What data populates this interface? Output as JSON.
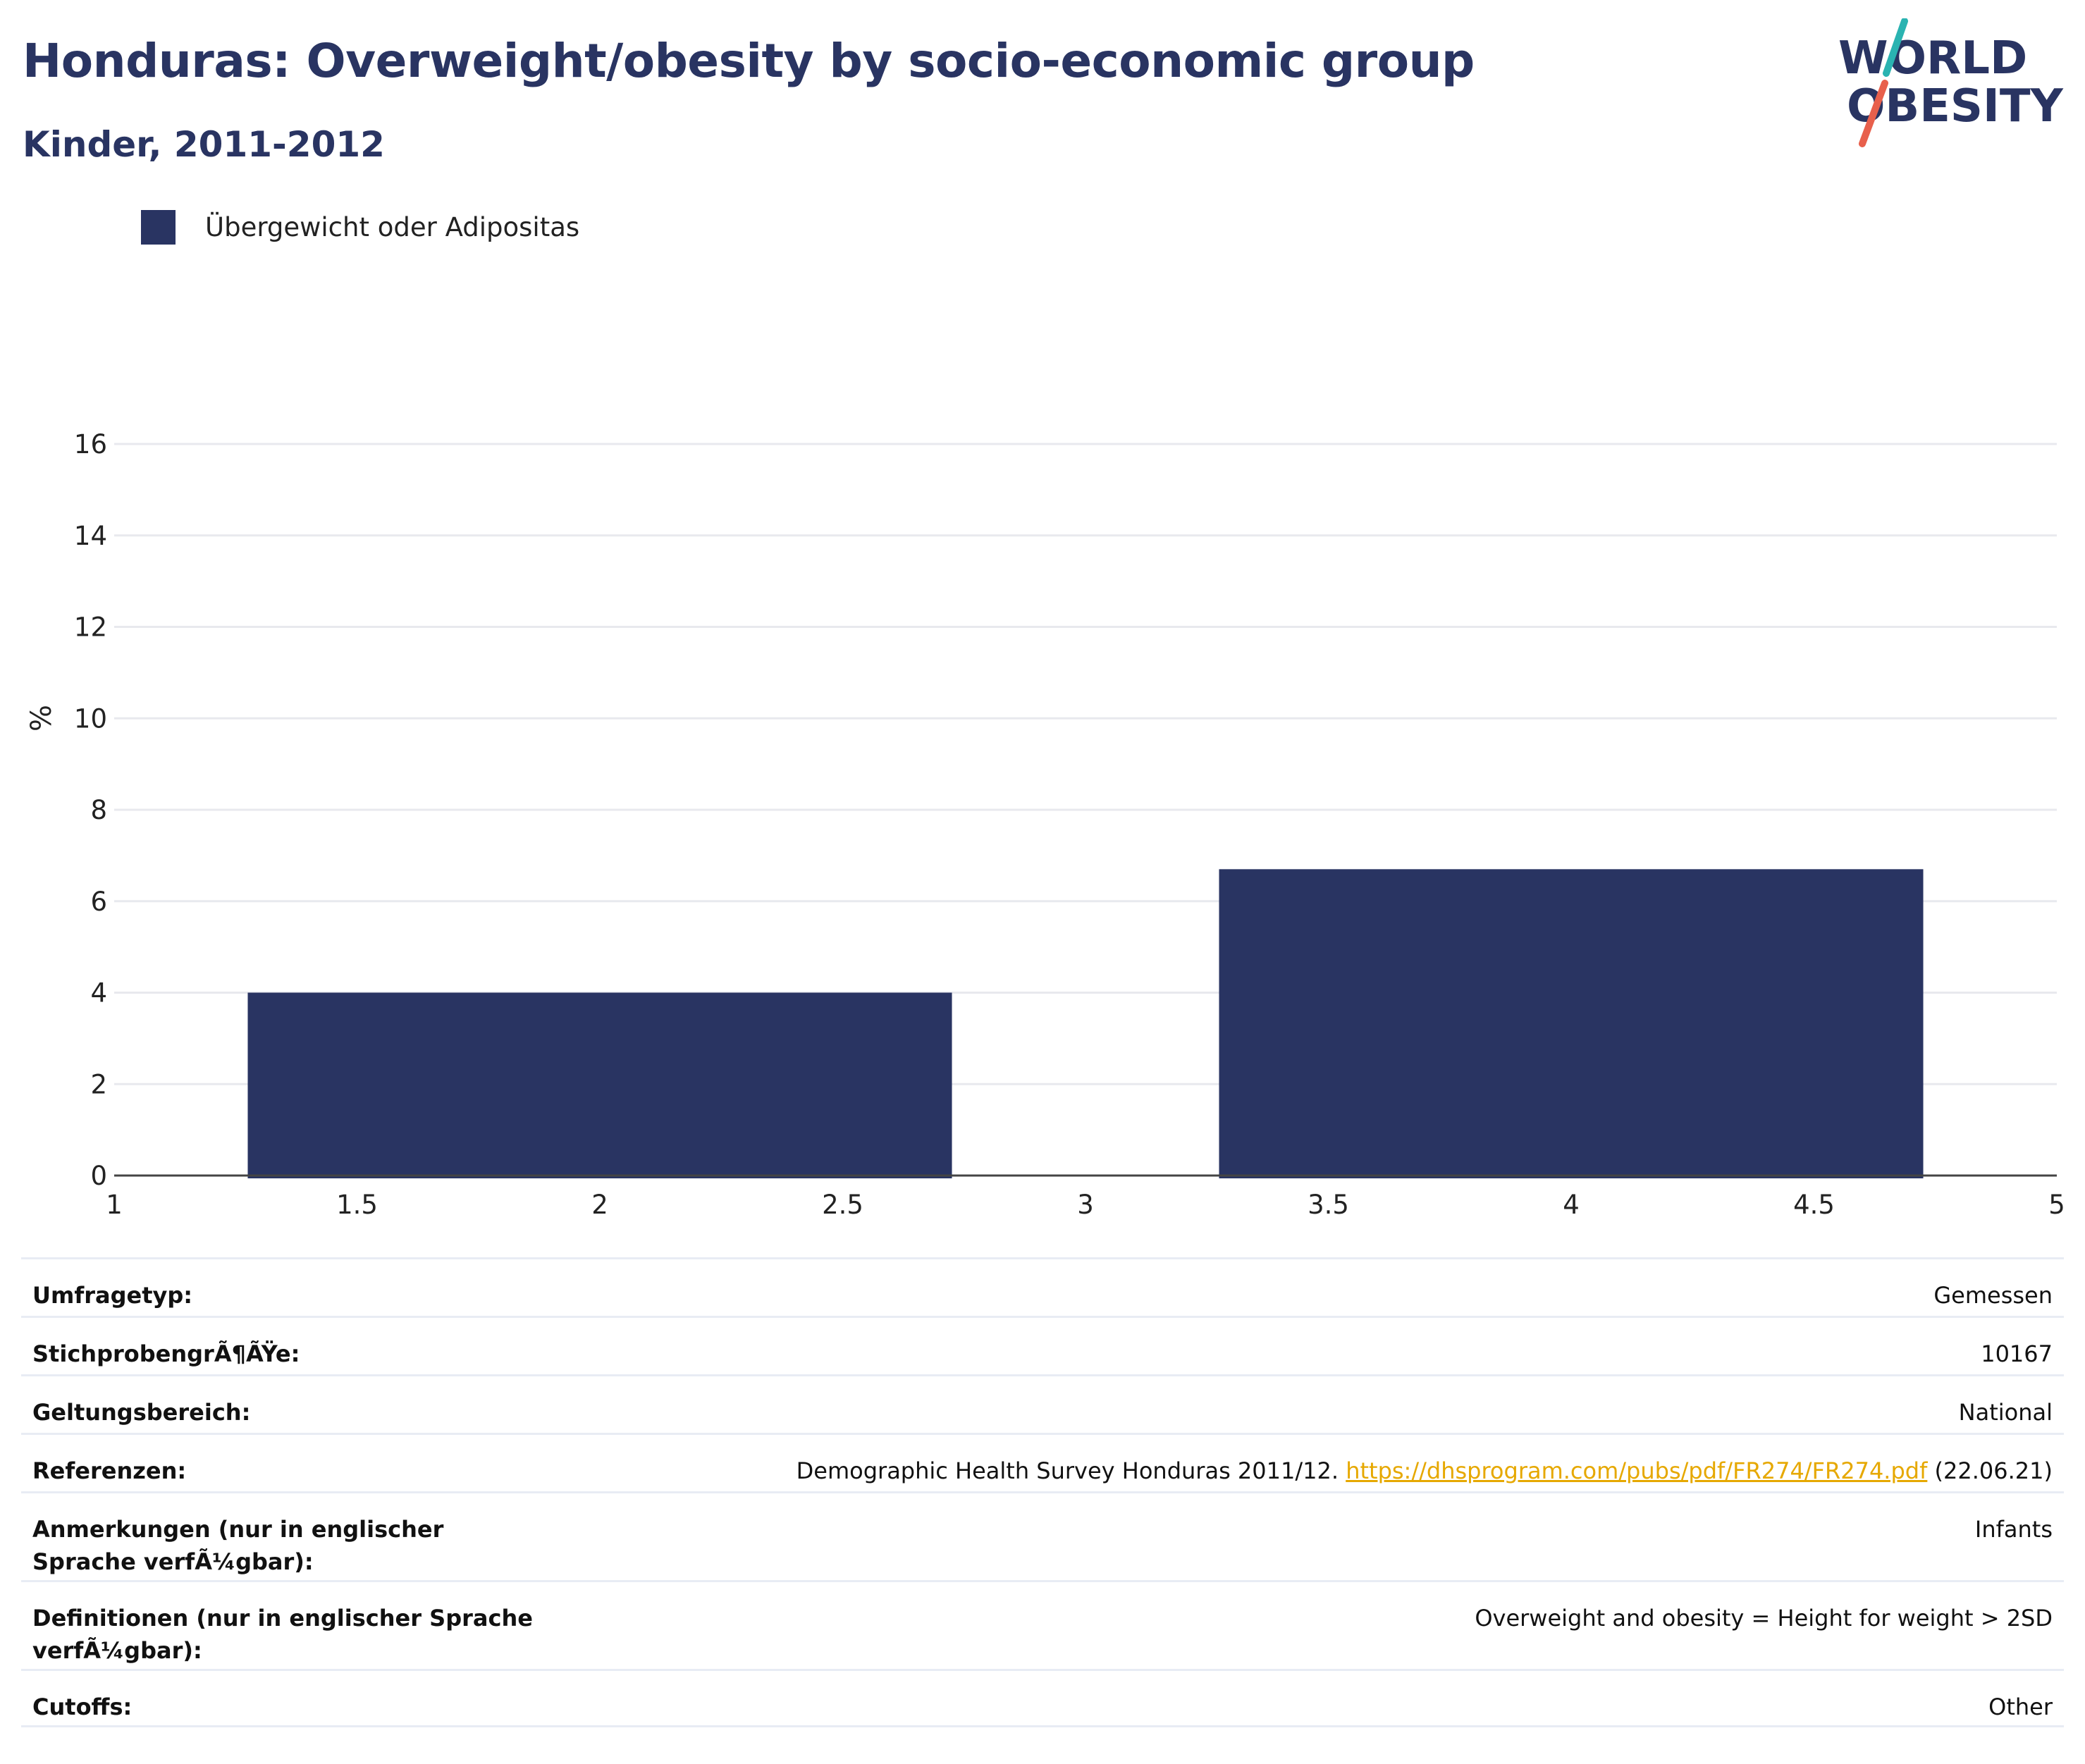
{
  "header": {
    "title": "Honduras: Overweight/obesity by socio-economic group",
    "subtitle": "Kinder, 2011-2012"
  },
  "logo": {
    "line1": "WORLD",
    "line2": "OBESITY"
  },
  "colors": {
    "bar": "#293462",
    "title": "#293462",
    "link": "#e6a800",
    "logo_teal": "#2ab3b1",
    "logo_coral": "#e8604c"
  },
  "chart_data": {
    "type": "bar",
    "title": "Honduras: Overweight/obesity by socio-economic group",
    "subtitle": "Kinder, 2011-2012",
    "xlabel": "",
    "ylabel": "%",
    "xlim": [
      1,
      5
    ],
    "ylim": [
      0,
      16
    ],
    "x_ticks": [
      "1",
      "1.5",
      "2",
      "2.5",
      "3",
      "3.5",
      "4",
      "4.5",
      "5"
    ],
    "y_ticks": [
      "0",
      "2",
      "4",
      "6",
      "8",
      "10",
      "12",
      "14",
      "16"
    ],
    "grid": true,
    "legend_position": "top-left",
    "series": [
      {
        "name": "Übergewicht oder Adipositas",
        "x": [
          2,
          4
        ],
        "values": [
          4.0,
          6.7
        ],
        "bar_width": 1.45
      }
    ]
  },
  "info": {
    "rows": [
      {
        "label": "Umfragetyp:",
        "value": "Gemessen"
      },
      {
        "label": "StichprobengrÃ¶ÃŸe:",
        "value": "10167"
      },
      {
        "label": "Geltungsbereich:",
        "value": "National"
      },
      {
        "label": "Referenzen:",
        "value": "Demographic Health Survey Honduras 2011/12.",
        "link": "https://dhsprogram.com/pubs/pdf/FR274/FR274.pdf",
        "suffix": "(22.06.21)"
      },
      {
        "label": "Anmerkungen (nur in englischer Sprache verfÃ¼gbar):",
        "value": "Infants"
      },
      {
        "label": "Definitionen (nur in englischer Sprache verfÃ¼gbar):",
        "value": "Overweight and obesity = Height for weight > 2SD"
      },
      {
        "label": "Cutoffs:",
        "value": "Other"
      }
    ]
  }
}
